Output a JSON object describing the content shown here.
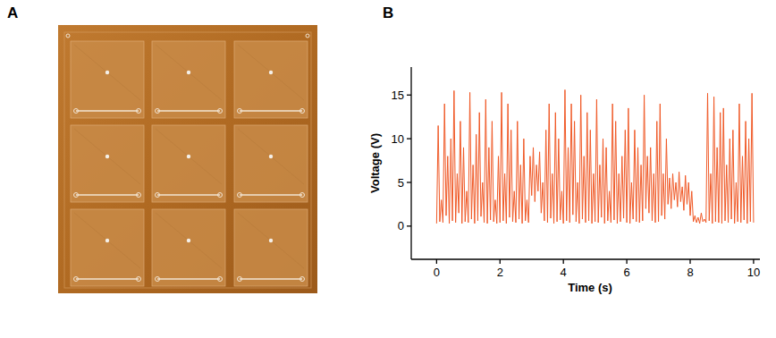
{
  "panel_labels": [
    "A",
    "B"
  ],
  "chart_data": {
    "type": "line",
    "xlabel": "Time (s)",
    "ylabel": "Voltage (V)",
    "color": "#f05a28",
    "grid": false,
    "xlim": [
      -0.8,
      10.2
    ],
    "ylim": [
      -3.8,
      18.2
    ],
    "xticks": [
      0,
      2,
      4,
      6,
      8,
      10
    ],
    "yticks": [
      0,
      5,
      10,
      15
    ],
    "x": [
      0,
      0.05,
      0.1,
      0.15,
      0.2,
      0.25,
      0.3,
      0.35,
      0.4,
      0.45,
      0.5,
      0.55,
      0.6,
      0.65,
      0.7,
      0.75,
      0.8,
      0.85,
      0.9,
      0.95,
      1,
      1.05,
      1.1,
      1.15,
      1.2,
      1.25,
      1.3,
      1.35,
      1.4,
      1.45,
      1.5,
      1.55,
      1.6,
      1.65,
      1.7,
      1.75,
      1.8,
      1.85,
      1.9,
      1.95,
      2,
      2.05,
      2.1,
      2.15,
      2.2,
      2.25,
      2.3,
      2.35,
      2.4,
      2.45,
      2.5,
      2.55,
      2.6,
      2.65,
      2.7,
      2.75,
      2.8,
      2.85,
      2.9,
      2.95,
      3,
      3.05,
      3.1,
      3.15,
      3.2,
      3.25,
      3.3,
      3.35,
      3.4,
      3.45,
      3.5,
      3.55,
      3.6,
      3.65,
      3.7,
      3.75,
      3.8,
      3.85,
      3.9,
      3.95,
      4,
      4.05,
      4.1,
      4.15,
      4.2,
      4.25,
      4.3,
      4.35,
      4.4,
      4.45,
      4.5,
      4.55,
      4.6,
      4.65,
      4.7,
      4.75,
      4.8,
      4.85,
      4.9,
      4.95,
      5,
      5.05,
      5.1,
      5.15,
      5.2,
      5.25,
      5.3,
      5.35,
      5.4,
      5.45,
      5.5,
      5.55,
      5.6,
      5.65,
      5.7,
      5.75,
      5.8,
      5.85,
      5.9,
      5.95,
      6,
      6.05,
      6.1,
      6.15,
      6.2,
      6.25,
      6.3,
      6.35,
      6.4,
      6.45,
      6.5,
      6.55,
      6.6,
      6.65,
      6.7,
      6.75,
      6.8,
      6.85,
      6.9,
      6.95,
      7,
      7.05,
      7.1,
      7.15,
      7.2,
      7.25,
      7.3,
      7.35,
      7.4,
      7.45,
      7.5,
      7.55,
      7.6,
      7.65,
      7.7,
      7.75,
      7.8,
      7.85,
      7.9,
      7.95,
      8,
      8.05,
      8.1,
      8.15,
      8.2,
      8.25,
      8.3,
      8.35,
      8.4,
      8.45,
      8.5,
      8.55,
      8.6,
      8.65,
      8.7,
      8.75,
      8.8,
      8.85,
      8.9,
      8.95,
      9,
      9.05,
      9.1,
      9.15,
      9.2,
      9.25,
      9.3,
      9.35,
      9.4,
      9.45,
      9.5,
      9.55,
      9.6,
      9.65,
      9.7,
      9.75,
      9.8,
      9.85,
      9.9,
      9.95,
      10
    ],
    "values": [
      0.3,
      11.5,
      0.5,
      3,
      0.4,
      14,
      1.2,
      8,
      0.3,
      10,
      0.6,
      15.5,
      0.4,
      6,
      1.5,
      12,
      0.3,
      9,
      0.5,
      4,
      0.4,
      15.3,
      0.8,
      7,
      0.3,
      10.5,
      0.6,
      13,
      1.1,
      5,
      0.4,
      14.5,
      0.3,
      9,
      0.7,
      12,
      0.5,
      3,
      0.3,
      8,
      0.4,
      15.3,
      0.6,
      6,
      0.3,
      14,
      1.0,
      11,
      0.5,
      4,
      0.4,
      12,
      0.8,
      7,
      0.3,
      10,
      0.6,
      3,
      0.4,
      8,
      3.5,
      9,
      2.8,
      7,
      4.0,
      8.5,
      1.5,
      5,
      0.6,
      11,
      0.4,
      14,
      0.9,
      6,
      0.3,
      13,
      0.5,
      10,
      0.7,
      4,
      0.3,
      15.6,
      0.6,
      9,
      0.4,
      14,
      1.3,
      12,
      0.5,
      5,
      0.3,
      15,
      0.8,
      8,
      0.4,
      13,
      0.6,
      11,
      0.3,
      6,
      0.5,
      14.5,
      0.4,
      7,
      1.0,
      10,
      0.3,
      9,
      0.6,
      4,
      0.4,
      14,
      0.7,
      12,
      0.3,
      6,
      0.5,
      8,
      0.9,
      11,
      0.4,
      13.5,
      0.3,
      5,
      0.8,
      11,
      0.5,
      9,
      0.4,
      7,
      0.6,
      15,
      2.0,
      8,
      1.5,
      9,
      0.6,
      6,
      0.4,
      12,
      0.5,
      14,
      1.2,
      6,
      0.8,
      10,
      2.5,
      5.5,
      2.0,
      6,
      3.0,
      5,
      2.2,
      6.2,
      2.8,
      4.5,
      1.8,
      5.8,
      2.5,
      5,
      1.2,
      4,
      0.5,
      1.2,
      0.4,
      1,
      0.3,
      1.5,
      0.5,
      0.8,
      0.4,
      15.2,
      0.6,
      6,
      0.3,
      14.8,
      0.5,
      9,
      0.4,
      13,
      0.3,
      13.5,
      0.6,
      7,
      0.4,
      10,
      0.8,
      11,
      0.3,
      5,
      0.5,
      14,
      0.4,
      8,
      0.7,
      12,
      0.3,
      10,
      0.5,
      15.2,
      0.4
    ]
  }
}
